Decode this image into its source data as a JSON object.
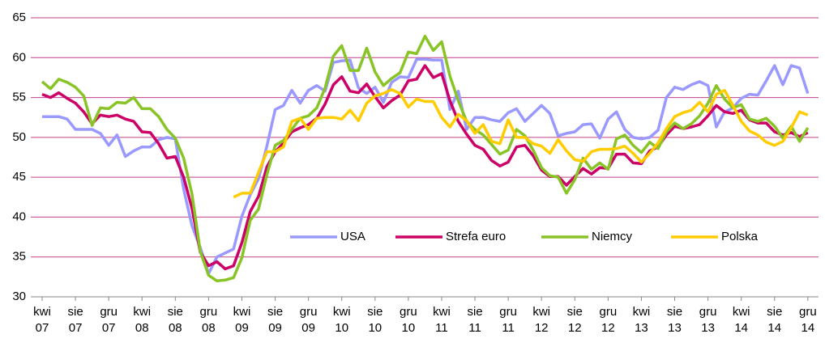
{
  "chart_data": {
    "type": "line",
    "categories": [
      "kwi 07",
      null,
      null,
      null,
      "sie 07",
      null,
      null,
      null,
      "gru 07",
      null,
      null,
      null,
      "kwi 08",
      null,
      null,
      null,
      "sie 08",
      null,
      null,
      null,
      "gru 08",
      null,
      null,
      null,
      "kwi 09",
      null,
      null,
      null,
      "sie 09",
      null,
      null,
      null,
      "gru 09",
      null,
      null,
      null,
      "kwi 10",
      null,
      null,
      null,
      "sie 10",
      null,
      null,
      null,
      "gru 10",
      null,
      null,
      null,
      "kwi 11",
      null,
      null,
      null,
      "sie 11",
      null,
      null,
      null,
      "gru 11",
      null,
      null,
      null,
      "kwi 12",
      null,
      null,
      null,
      "sie 12",
      null,
      null,
      null,
      "gru 12",
      null,
      null,
      null,
      "kwi 13",
      null,
      null,
      null,
      "sie 13",
      null,
      null,
      null,
      "gru 13",
      null,
      null,
      null,
      "kwi 14",
      null,
      null,
      null,
      "sie 14",
      null,
      null,
      null,
      "gru 14"
    ],
    "series": [
      {
        "name": "USA",
        "color": "#9999ff",
        "values": [
          52.6,
          52.6,
          52.6,
          52.3,
          51.0,
          51.0,
          51.0,
          50.5,
          49.0,
          50.3,
          47.6,
          48.3,
          48.8,
          48.8,
          49.7,
          50.0,
          49.8,
          43.5,
          38.9,
          36.2,
          32.9,
          35.0,
          35.5,
          36.0,
          40.1,
          42.8,
          44.8,
          48.9,
          53.5,
          54.0,
          55.9,
          54.3,
          55.9,
          56.5,
          55.8,
          59.4,
          59.6,
          59.7,
          56.2,
          55.5,
          56.3,
          54.4,
          56.9,
          57.6,
          57.5,
          59.8,
          59.8,
          59.7,
          59.7,
          53.5,
          55.8,
          51.0,
          52.5,
          52.5,
          52.2,
          52.0,
          53.1,
          53.6,
          52.0,
          53.0,
          54.0,
          53.0,
          50.2,
          50.5,
          50.7,
          51.6,
          51.7,
          49.9,
          52.3,
          53.2,
          51.0,
          50.0,
          49.8,
          50.0,
          50.9,
          55.0,
          56.3,
          56.0,
          56.6,
          57.0,
          56.5,
          51.3,
          53.2,
          53.7,
          54.9,
          55.4,
          55.3,
          57.1,
          59.0,
          56.6,
          59.0,
          58.7,
          55.5
        ]
      },
      {
        "name": "Strefa euro",
        "color": "#cc0066",
        "values": [
          55.4,
          55.0,
          55.6,
          54.9,
          54.3,
          53.2,
          51.7,
          52.8,
          52.6,
          52.8,
          52.3,
          52.0,
          50.7,
          50.6,
          49.2,
          47.4,
          47.6,
          45.0,
          41.1,
          35.6,
          33.9,
          34.4,
          33.5,
          33.9,
          36.8,
          40.7,
          42.6,
          46.3,
          48.2,
          49.3,
          50.7,
          51.2,
          51.6,
          52.4,
          54.2,
          56.6,
          57.6,
          55.8,
          55.6,
          56.7,
          55.1,
          53.7,
          54.6,
          55.3,
          57.1,
          57.3,
          59.0,
          57.5,
          58.0,
          54.6,
          52.0,
          50.4,
          49.0,
          48.5,
          47.1,
          46.4,
          46.9,
          48.8,
          49.0,
          47.7,
          45.9,
          45.1,
          45.1,
          44.0,
          45.1,
          46.1,
          45.4,
          46.2,
          46.1,
          47.9,
          47.9,
          46.8,
          46.7,
          48.3,
          48.8,
          50.3,
          51.4,
          51.1,
          51.3,
          51.6,
          52.7,
          54.0,
          53.2,
          53.0,
          53.4,
          52.2,
          51.8,
          51.8,
          50.7,
          50.3,
          50.6,
          50.1,
          50.6
        ]
      },
      {
        "name": "Niemcy",
        "color": "#88c425",
        "values": [
          57.0,
          56.1,
          57.3,
          56.9,
          56.3,
          55.2,
          51.5,
          53.7,
          53.6,
          54.4,
          54.3,
          55.0,
          53.6,
          53.6,
          52.6,
          51.0,
          49.9,
          47.4,
          42.9,
          35.7,
          32.7,
          32.0,
          32.1,
          32.4,
          34.9,
          39.6,
          41.0,
          45.3,
          49.0,
          49.6,
          51.0,
          52.4,
          52.7,
          53.7,
          56.2,
          60.2,
          61.5,
          58.4,
          58.4,
          61.2,
          58.2,
          56.5,
          57.4,
          58.1,
          60.7,
          60.5,
          62.7,
          60.9,
          62.0,
          57.7,
          54.6,
          52.0,
          51.0,
          50.3,
          49.1,
          47.9,
          48.4,
          51.0,
          50.2,
          48.4,
          46.2,
          45.2,
          45.0,
          43.0,
          44.7,
          47.4,
          46.0,
          46.8,
          46.0,
          49.8,
          50.3,
          49.0,
          48.1,
          49.4,
          48.6,
          50.7,
          51.8,
          51.1,
          51.7,
          52.7,
          54.3,
          56.5,
          54.8,
          53.7,
          54.1,
          52.3,
          52.0,
          52.4,
          51.4,
          49.9,
          51.4,
          49.5,
          51.2
        ]
      },
      {
        "name": "Polska",
        "color": "#ffcc00",
        "values": [
          null,
          null,
          null,
          null,
          null,
          null,
          null,
          null,
          null,
          null,
          null,
          null,
          null,
          null,
          null,
          null,
          null,
          null,
          null,
          null,
          null,
          null,
          null,
          42.5,
          43.0,
          43.0,
          45.6,
          48.2,
          48.2,
          48.8,
          52.0,
          52.4,
          51.0,
          52.4,
          52.5,
          52.5,
          52.3,
          53.4,
          52.1,
          54.3,
          55.2,
          55.5,
          56.0,
          55.5,
          53.8,
          54.8,
          54.5,
          54.5,
          52.5,
          51.3,
          52.9,
          52.1,
          50.5,
          51.6,
          49.5,
          49.2,
          52.2,
          50.0,
          50.0,
          49.2,
          48.9,
          48.0,
          49.7,
          48.3,
          47.2,
          47.0,
          48.2,
          48.5,
          48.5,
          48.6,
          48.9,
          48.0,
          46.9,
          48.0,
          49.3,
          51.1,
          52.6,
          53.1,
          53.4,
          54.4,
          53.2,
          55.4,
          55.9,
          54.0,
          52.0,
          50.8,
          50.3,
          49.4,
          49.0,
          49.5,
          51.2,
          53.2,
          52.8
        ]
      }
    ],
    "ylim": [
      30,
      65
    ],
    "yticks": [
      30,
      35,
      40,
      45,
      50,
      55,
      60,
      65
    ],
    "grid": true
  }
}
